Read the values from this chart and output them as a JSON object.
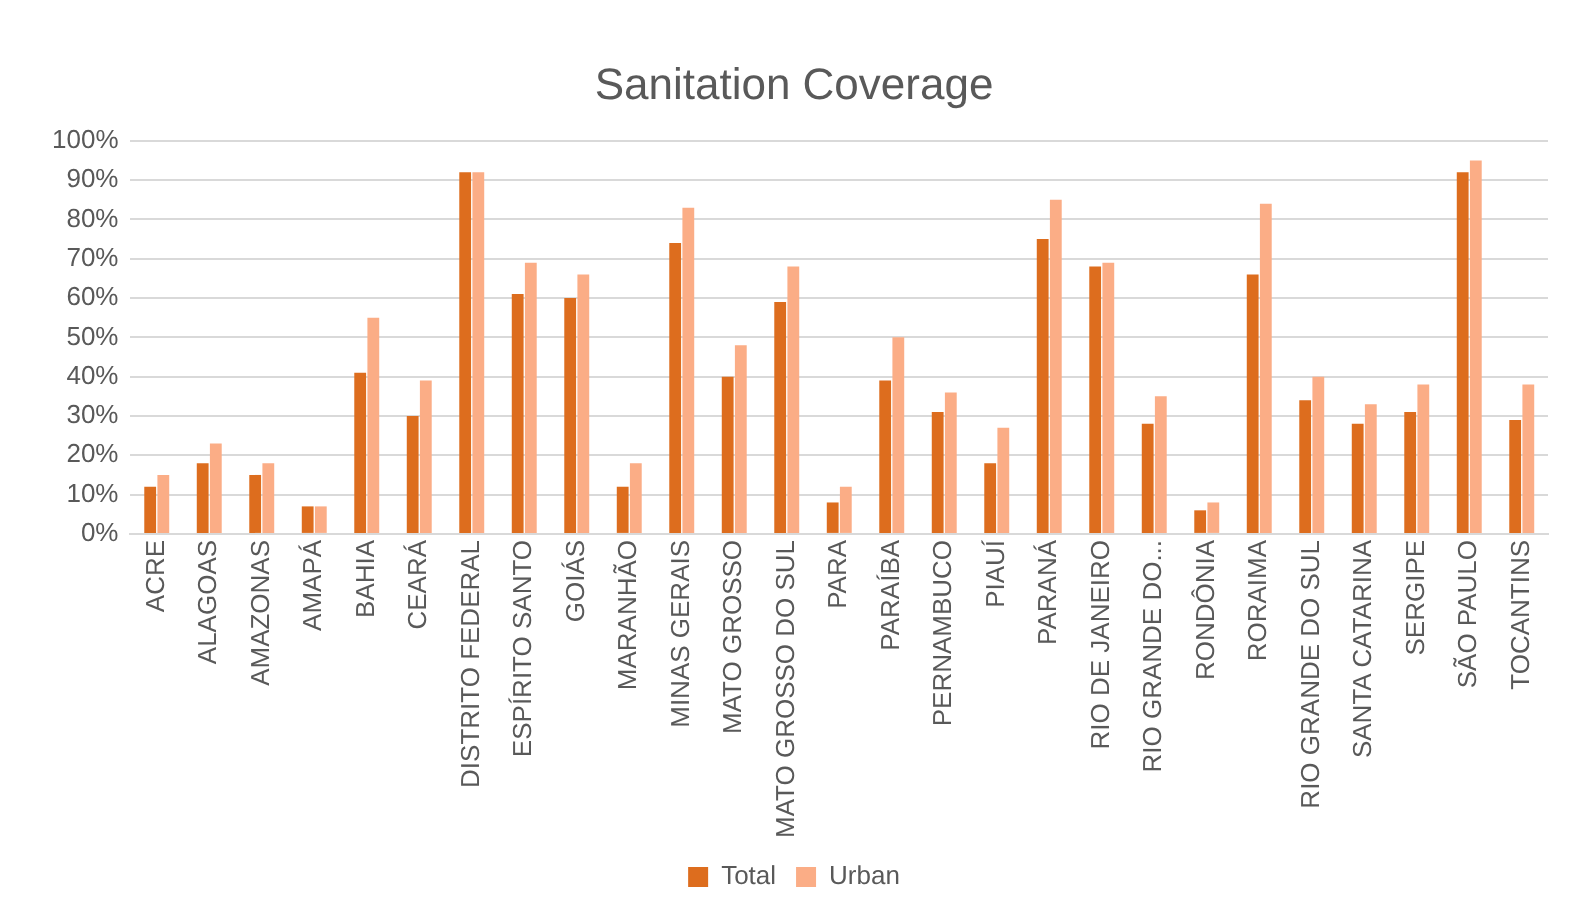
{
  "chart_data": {
    "type": "bar",
    "title": "Sanitation Coverage",
    "categories": [
      "ACRE",
      "ALAGOAS",
      "AMAZONAS",
      "AMAPÁ",
      "BAHIA",
      "CEARÁ",
      "DISTRITO FEDERAL",
      "ESPÍRITO SANTO",
      "GOIÁS",
      "MARANHÃO",
      "MINAS GERAIS",
      "MATO GROSSO",
      "MATO GROSSO DO SUL",
      "PARA",
      "PARAÍBA",
      "PERNAMBUCO",
      "PIAUÍ",
      "PARANÁ",
      "RIO DE JANEIRO",
      "RIO GRANDE DO...",
      "RONDÔNIA",
      "RORAIMA",
      "RIO GRANDE DO SUL",
      "SANTA CATARINA",
      "SERGIPE",
      "SÃO PAULO",
      "TOCANTINS"
    ],
    "series": [
      {
        "name": "Total",
        "color": "#dd6d1e",
        "values": [
          12,
          18,
          15,
          7,
          41,
          30,
          92,
          61,
          60,
          12,
          74,
          40,
          59,
          8,
          39,
          31,
          18,
          75,
          68,
          28,
          6,
          66,
          34,
          28,
          31,
          92,
          29
        ]
      },
      {
        "name": "Urban",
        "color": "#fbad86",
        "values": [
          15,
          23,
          18,
          7,
          55,
          39,
          92,
          69,
          66,
          18,
          83,
          48,
          68,
          12,
          50,
          36,
          27,
          85,
          69,
          35,
          8,
          84,
          40,
          33,
          38,
          95,
          38
        ]
      }
    ],
    "ylim": [
      0,
      100
    ],
    "yticks": [
      {
        "value": 0,
        "label": "0%"
      },
      {
        "value": 10,
        "label": "10%"
      },
      {
        "value": 20,
        "label": "20%"
      },
      {
        "value": 30,
        "label": "30%"
      },
      {
        "value": 40,
        "label": "40%"
      },
      {
        "value": 50,
        "label": "50%"
      },
      {
        "value": 60,
        "label": "60%"
      },
      {
        "value": 70,
        "label": "70%"
      },
      {
        "value": 80,
        "label": "80%"
      },
      {
        "value": 90,
        "label": "90%"
      },
      {
        "value": 100,
        "label": "100%"
      }
    ],
    "grid": "y",
    "legend": "bottom"
  }
}
